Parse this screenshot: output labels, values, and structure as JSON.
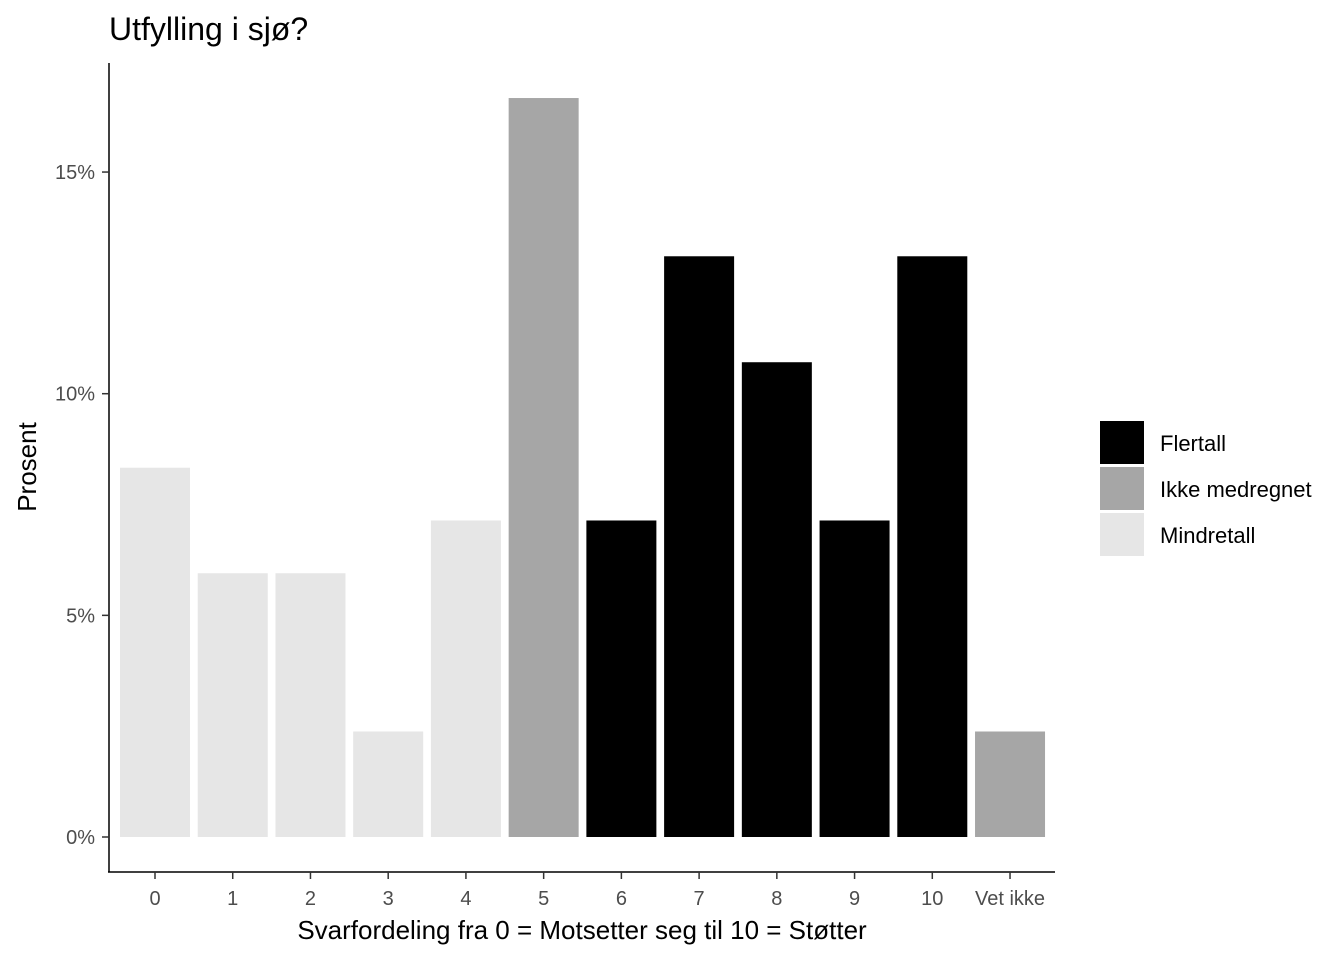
{
  "chart_data": {
    "type": "bar",
    "title": "Utfylling i sjø?",
    "xlabel": "Svarfordeling fra 0 = Motsetter seg til 10 = Støtter",
    "ylabel": "Prosent",
    "categories": [
      "0",
      "1",
      "2",
      "3",
      "4",
      "5",
      "6",
      "7",
      "8",
      "9",
      "10",
      "Vet ikke"
    ],
    "values": [
      8.33,
      5.95,
      5.95,
      2.38,
      7.14,
      16.67,
      7.14,
      13.1,
      10.71,
      7.14,
      13.1,
      2.38
    ],
    "groups": [
      "Mindretall",
      "Mindretall",
      "Mindretall",
      "Mindretall",
      "Mindretall",
      "Ikke medregnet",
      "Flertall",
      "Flertall",
      "Flertall",
      "Flertall",
      "Flertall",
      "Ikke medregnet"
    ],
    "ylim": [
      0,
      17.5
    ],
    "yticks": [
      0,
      5,
      10,
      15
    ],
    "ytick_labels": [
      "0%",
      "5%",
      "10%",
      "15%"
    ],
    "grid": false,
    "legend": {
      "placement": "right",
      "entries": [
        {
          "name": "Flertall",
          "color": "#000000"
        },
        {
          "name": "Ikke medregnet",
          "color": "#a6a6a6"
        },
        {
          "name": "Mindretall",
          "color": "#e6e6e6"
        }
      ]
    }
  }
}
